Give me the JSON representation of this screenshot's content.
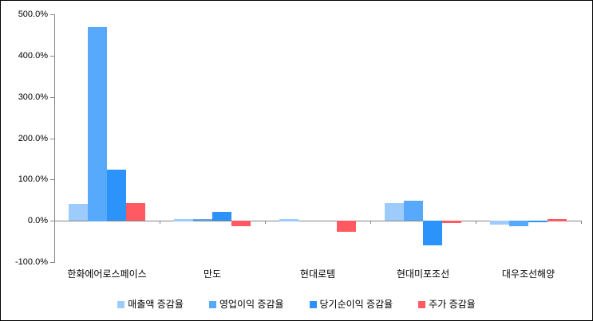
{
  "chart_data": {
    "type": "bar",
    "title": "",
    "xlabel": "",
    "ylabel": "",
    "categories": [
      "한화에어로스페이스",
      "만도",
      "현대로템",
      "현대미포조선",
      "대우조선해양"
    ],
    "series": [
      {
        "name": "매출액 증감율",
        "color": "#9CCBFC",
        "values": [
          40,
          5,
          5,
          42,
          -10
        ]
      },
      {
        "name": "영업이익 증감율",
        "color": "#57AAFB",
        "values": [
          470,
          4,
          0,
          48,
          -13
        ]
      },
      {
        "name": "당기순이익 증감율",
        "color": "#2B93FA",
        "values": [
          123,
          22,
          0,
          -60,
          -4
        ]
      },
      {
        "name": "주가 증감율",
        "color": "#FF5A61",
        "values": [
          43,
          -13,
          -27,
          -5,
          5
        ]
      }
    ],
    "ylim": [
      -100,
      500
    ],
    "ytick_step": 100,
    "ytick_labels": [
      "500.0%",
      "400.0%",
      "300.0%",
      "200.0%",
      "100.0%",
      "0.0%",
      "-100.0%"
    ],
    "grid": false,
    "legend_position": "bottom",
    "axis_color": "#858585",
    "background_color": "#FFFFFF",
    "border_color": "#000000"
  }
}
